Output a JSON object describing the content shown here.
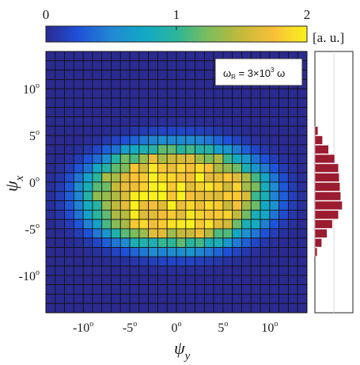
{
  "chart_data": {
    "type": "heatmap",
    "xlabel": "ψ",
    "xlabel_sub": "y",
    "ylabel": "ψ",
    "ylabel_sub": "x",
    "x_range": [
      -14,
      14
    ],
    "y_range": [
      -14,
      14
    ],
    "grid_cells": 28,
    "x_ticks": [
      {
        "v": -10,
        "label": "-10"
      },
      {
        "v": -5,
        "label": "-5"
      },
      {
        "v": 0,
        "label": "0"
      },
      {
        "v": 5,
        "label": "5"
      },
      {
        "v": 10,
        "label": "10"
      }
    ],
    "y_ticks": [
      {
        "v": 10,
        "label": "10"
      },
      {
        "v": 5,
        "label": "5"
      },
      {
        "v": 0,
        "label": "0"
      },
      {
        "v": -5,
        "label": "-5"
      },
      {
        "v": -10,
        "label": "-10"
      }
    ],
    "tick_degree_mark": "o",
    "colorbar": {
      "min": 0,
      "max": 2,
      "ticks": [
        {
          "v": 0,
          "label": "0"
        },
        {
          "v": 1,
          "label": "1"
        },
        {
          "v": 2,
          "label": "2"
        }
      ],
      "unit_label": "[a. u.]",
      "colormap": "parula"
    },
    "annotation": {
      "text_main": "ω",
      "sub": "R",
      "text_mid": " = 3×10",
      "sup": "3",
      "text_end": " ω"
    },
    "distribution_model": {
      "center_x_deg": -1.5,
      "center_y_deg": 0,
      "sigma_x_deg": 5.0,
      "sigma_y_deg": 8.7,
      "peak_value": 2.0
    },
    "side_histogram": {
      "axis": "psi_x",
      "bin_centers": [
        5.5,
        4.5,
        3.5,
        2.5,
        1.5,
        0.5,
        -0.5,
        -1.5,
        -2.5,
        -3.5,
        -4.5,
        -5.5,
        -6.5,
        -7.5
      ],
      "values": [
        0.08,
        0.2,
        0.36,
        0.52,
        0.62,
        0.64,
        0.66,
        0.68,
        0.72,
        0.62,
        0.46,
        0.32,
        0.18,
        0.06
      ],
      "bar_color": "#9b1b30"
    }
  },
  "colors": {
    "background": "#ffffff",
    "cell_border": "#111111",
    "low": "#2b2a8f",
    "high": "#f9f11c"
  }
}
